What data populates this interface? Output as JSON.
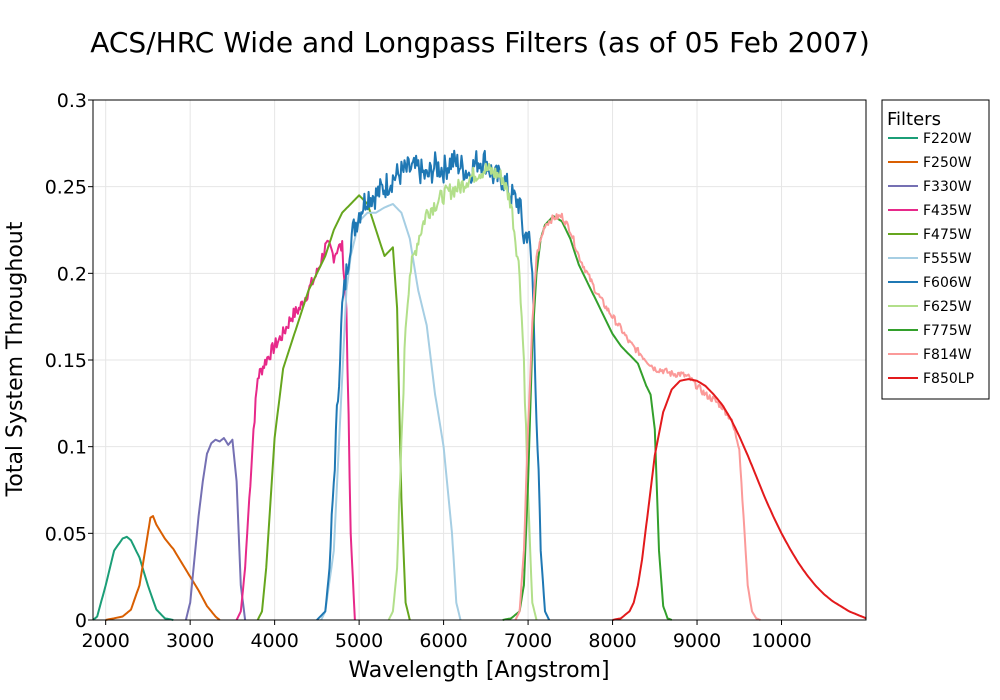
{
  "chart_data": {
    "type": "line",
    "title": "ACS/HRC Wide and Longpass Filters (as of 05 Feb 2007)",
    "xlabel": "Wavelength [Angstrom]",
    "ylabel": "Total System Throughout",
    "xlim": [
      1850,
      11000
    ],
    "ylim": [
      0,
      0.3
    ],
    "xticks": [
      2000,
      3000,
      4000,
      5000,
      6000,
      7000,
      8000,
      9000,
      10000
    ],
    "yticks": [
      0,
      0.05,
      0.1,
      0.15,
      0.2,
      0.25,
      0.3
    ],
    "grid": true,
    "legend": {
      "title": "Filters",
      "placement": "right"
    },
    "series": [
      {
        "name": "F220W",
        "color": "#1b9e77",
        "x": [
          1850,
          1900,
          2000,
          2100,
          2200,
          2250,
          2300,
          2400,
          2500,
          2600,
          2700,
          2800
        ],
        "y": [
          0,
          0.002,
          0.02,
          0.04,
          0.047,
          0.048,
          0.046,
          0.036,
          0.02,
          0.006,
          0.001,
          0
        ]
      },
      {
        "name": "F250W",
        "color": "#d95f02",
        "x": [
          2000,
          2200,
          2300,
          2400,
          2450,
          2500,
          2530,
          2560,
          2600,
          2700,
          2800,
          2900,
          3000,
          3100,
          3200,
          3300,
          3350
        ],
        "y": [
          0,
          0.002,
          0.006,
          0.02,
          0.035,
          0.05,
          0.059,
          0.06,
          0.055,
          0.047,
          0.041,
          0.033,
          0.025,
          0.017,
          0.008,
          0.002,
          0
        ]
      },
      {
        "name": "F330W",
        "color": "#7570b3",
        "x": [
          2950,
          3000,
          3050,
          3100,
          3150,
          3200,
          3250,
          3300,
          3350,
          3400,
          3450,
          3500,
          3550,
          3600,
          3650
        ],
        "y": [
          0,
          0.01,
          0.035,
          0.06,
          0.08,
          0.096,
          0.102,
          0.104,
          0.103,
          0.105,
          0.101,
          0.104,
          0.08,
          0.02,
          0
        ]
      },
      {
        "name": "F435W",
        "color": "#e7298a",
        "x": [
          3550,
          3600,
          3650,
          3700,
          3750,
          3800,
          3850,
          3900,
          4000,
          4100,
          4200,
          4300,
          4400,
          4500,
          4600,
          4650,
          4700,
          4750,
          4800,
          4850,
          4900,
          4950
        ],
        "y": [
          0,
          0.005,
          0.03,
          0.07,
          0.11,
          0.14,
          0.145,
          0.15,
          0.158,
          0.165,
          0.175,
          0.18,
          0.19,
          0.2,
          0.215,
          0.215,
          0.21,
          0.215,
          0.215,
          0.18,
          0.05,
          0
        ]
      },
      {
        "name": "F475W",
        "color": "#66a61e",
        "x": [
          3800,
          3850,
          3900,
          4000,
          4100,
          4200,
          4300,
          4400,
          4500,
          4600,
          4700,
          4800,
          4900,
          5000,
          5100,
          5200,
          5300,
          5400,
          5450,
          5500,
          5550,
          5600
        ],
        "y": [
          0,
          0.005,
          0.03,
          0.105,
          0.145,
          0.16,
          0.175,
          0.19,
          0.2,
          0.21,
          0.225,
          0.235,
          0.24,
          0.245,
          0.24,
          0.225,
          0.21,
          0.215,
          0.18,
          0.07,
          0.01,
          0
        ]
      },
      {
        "name": "F555W",
        "color": "#a6cee3",
        "x": [
          4550,
          4600,
          4700,
          4800,
          4850,
          4900,
          5000,
          5100,
          5200,
          5300,
          5400,
          5500,
          5600,
          5700,
          5800,
          5900,
          6000,
          6100,
          6150,
          6200
        ],
        "y": [
          0,
          0.005,
          0.04,
          0.14,
          0.19,
          0.21,
          0.23,
          0.235,
          0.235,
          0.238,
          0.24,
          0.235,
          0.22,
          0.19,
          0.17,
          0.13,
          0.1,
          0.05,
          0.01,
          0
        ]
      },
      {
        "name": "F606W",
        "color": "#1f78b4",
        "x": [
          4500,
          4600,
          4650,
          4700,
          4750,
          4800,
          4850,
          4900,
          5000,
          5100,
          5200,
          5300,
          5400,
          5500,
          5600,
          5700,
          5800,
          5900,
          6000,
          6100,
          6200,
          6300,
          6400,
          6500,
          6600,
          6700,
          6800,
          6900,
          6950,
          7000,
          7050,
          7100,
          7150,
          7200,
          7250
        ],
        "y": [
          0,
          0.005,
          0.03,
          0.08,
          0.13,
          0.18,
          0.2,
          0.22,
          0.235,
          0.245,
          0.245,
          0.25,
          0.255,
          0.258,
          0.26,
          0.26,
          0.255,
          0.262,
          0.26,
          0.265,
          0.262,
          0.258,
          0.265,
          0.265,
          0.255,
          0.255,
          0.245,
          0.24,
          0.22,
          0.225,
          0.2,
          0.12,
          0.04,
          0.005,
          0
        ]
      },
      {
        "name": "F625W",
        "color": "#b2df8a",
        "x": [
          5350,
          5400,
          5450,
          5500,
          5550,
          5600,
          5700,
          5800,
          5900,
          6000,
          6100,
          6200,
          6300,
          6400,
          6500,
          6600,
          6700,
          6800,
          6900,
          6950,
          7000,
          7050,
          7100
        ],
        "y": [
          0,
          0.005,
          0.03,
          0.1,
          0.17,
          0.2,
          0.22,
          0.235,
          0.24,
          0.245,
          0.248,
          0.25,
          0.255,
          0.258,
          0.26,
          0.258,
          0.255,
          0.24,
          0.2,
          0.15,
          0.07,
          0.01,
          0
        ]
      },
      {
        "name": "F775W",
        "color": "#33a02c",
        "x": [
          6700,
          6800,
          6900,
          6950,
          7000,
          7050,
          7100,
          7150,
          7200,
          7300,
          7400,
          7500,
          7600,
          7700,
          7800,
          7900,
          8000,
          8100,
          8200,
          8300,
          8400,
          8450,
          8500,
          8550,
          8600,
          8650,
          8700
        ],
        "y": [
          0,
          0.001,
          0.005,
          0.02,
          0.08,
          0.16,
          0.2,
          0.22,
          0.228,
          0.233,
          0.23,
          0.22,
          0.205,
          0.195,
          0.185,
          0.175,
          0.165,
          0.158,
          0.153,
          0.148,
          0.135,
          0.13,
          0.11,
          0.04,
          0.008,
          0.001,
          0
        ]
      },
      {
        "name": "F814W",
        "color": "#fb9a99",
        "x": [
          6850,
          6900,
          6950,
          7000,
          7050,
          7100,
          7200,
          7300,
          7400,
          7500,
          7600,
          7700,
          7800,
          7900,
          8000,
          8100,
          8200,
          8300,
          8400,
          8500,
          8600,
          8700,
          8800,
          8900,
          9000,
          9100,
          9200,
          9300,
          9400,
          9500,
          9550,
          9600,
          9650,
          9700,
          9750
        ],
        "y": [
          0,
          0.005,
          0.04,
          0.11,
          0.17,
          0.21,
          0.228,
          0.232,
          0.233,
          0.225,
          0.21,
          0.2,
          0.19,
          0.182,
          0.175,
          0.168,
          0.16,
          0.155,
          0.15,
          0.145,
          0.144,
          0.142,
          0.142,
          0.14,
          0.135,
          0.13,
          0.127,
          0.123,
          0.116,
          0.1,
          0.06,
          0.02,
          0.005,
          0.001,
          0
        ]
      },
      {
        "name": "F850LP",
        "color": "#e31a1c",
        "x": [
          8000,
          8100,
          8200,
          8250,
          8300,
          8350,
          8400,
          8450,
          8500,
          8600,
          8700,
          8800,
          8900,
          9000,
          9100,
          9200,
          9300,
          9400,
          9500,
          9600,
          9700,
          9800,
          9900,
          10000,
          10100,
          10200,
          10300,
          10400,
          10500,
          10600,
          10700,
          10800,
          10900,
          11000
        ],
        "y": [
          0,
          0.001,
          0.005,
          0.01,
          0.02,
          0.035,
          0.055,
          0.075,
          0.095,
          0.12,
          0.133,
          0.138,
          0.139,
          0.138,
          0.135,
          0.13,
          0.124,
          0.116,
          0.106,
          0.095,
          0.083,
          0.071,
          0.06,
          0.05,
          0.041,
          0.033,
          0.026,
          0.02,
          0.015,
          0.011,
          0.008,
          0.005,
          0.003,
          0.001
        ]
      }
    ]
  }
}
